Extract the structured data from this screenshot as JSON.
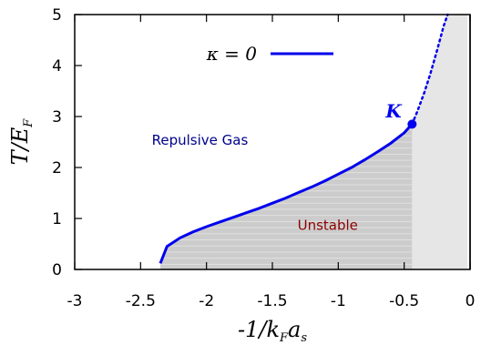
{
  "chart_data": {
    "type": "line",
    "xlabel": "-1/k_F a_s",
    "ylabel": "T/E_F",
    "xlim": [
      -3,
      0
    ],
    "ylim": [
      0,
      5
    ],
    "x_ticks": [
      "-3",
      "-2.5",
      "-2",
      "-1.5",
      "-1",
      "-0.5",
      "0"
    ],
    "y_ticks": [
      "0",
      "1",
      "2",
      "3",
      "4",
      "5"
    ],
    "legend": {
      "label": "κ = 0",
      "placement": "top-left"
    },
    "series": [
      {
        "name": "κ = 0",
        "style": "solid",
        "color": "#0000ee",
        "x": [
          -2.35,
          -2.3,
          -2.2,
          -2.1,
          -2.0,
          -1.9,
          -1.8,
          -1.7,
          -1.6,
          -1.5,
          -1.4,
          -1.3,
          -1.2,
          -1.1,
          -1.0,
          -0.9,
          -0.8,
          -0.7,
          -0.6,
          -0.5,
          -0.44
        ],
        "y": [
          0.12,
          0.45,
          0.62,
          0.74,
          0.84,
          0.93,
          1.02,
          1.11,
          1.2,
          1.3,
          1.4,
          1.51,
          1.62,
          1.74,
          1.87,
          2.0,
          2.15,
          2.31,
          2.48,
          2.68,
          2.85
        ]
      },
      {
        "style": "dotted",
        "color": "#0000ee",
        "x": [
          -0.44,
          -0.4,
          -0.35,
          -0.3,
          -0.25,
          -0.2,
          -0.17
        ],
        "y": [
          2.85,
          3.1,
          3.45,
          3.85,
          4.3,
          4.78,
          5.0
        ]
      }
    ],
    "regions": [
      {
        "label": "Unstable",
        "color": "#cccccc"
      }
    ],
    "annotations": [
      {
        "text": "Repulsive Gas",
        "color": "#00008b",
        "x": -2.05,
        "y": 2.45
      },
      {
        "text": "Unstable",
        "color": "#8b0000",
        "x": -1.08,
        "y": 0.78
      },
      {
        "text": "K",
        "color": "#0000ee",
        "x": -0.52,
        "y": 2.98,
        "marker": {
          "x": -0.44,
          "y": 2.85
        }
      }
    ],
    "grid": false,
    "colors": {
      "line": "#0000ee",
      "shade": "#cccccc",
      "shade_light": "#e6e6e6"
    }
  }
}
